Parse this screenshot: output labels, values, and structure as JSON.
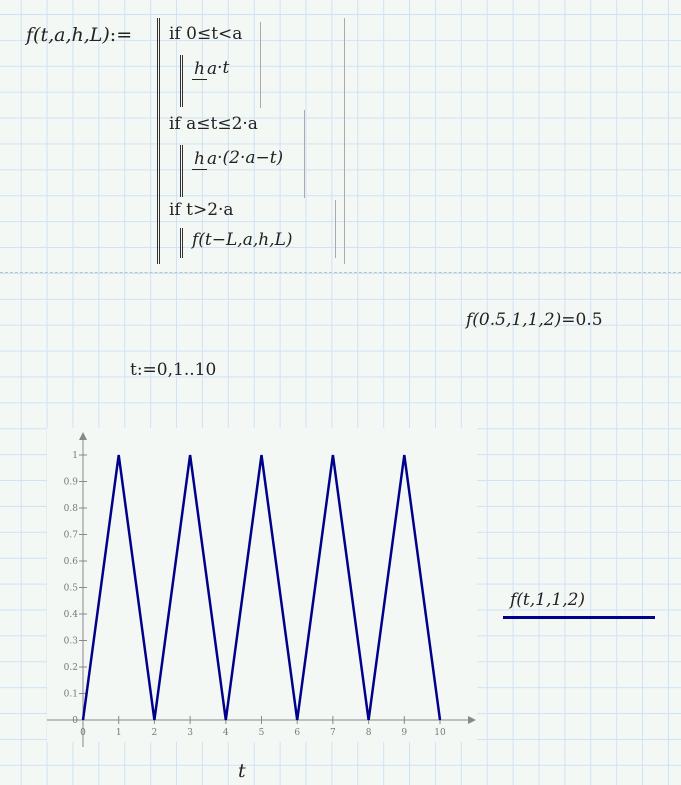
{
  "definition": {
    "lhs": "f(t,a,h,L)",
    "assign": ":=",
    "cases": [
      {
        "condition": "if 0≤t<a",
        "num": "h",
        "den": "a",
        "rest": "·t"
      },
      {
        "condition": "if a≤t≤2·a",
        "num": "h",
        "den": "a",
        "rest": "·(2·a−t)"
      },
      {
        "condition": "if t>2·a",
        "expr": "f(t−L,a,h,L)"
      }
    ]
  },
  "evaluation": {
    "expr": "f(0.5,1,1,2)",
    "result": "=0.5"
  },
  "range_def": "t:=0,1..10",
  "chart_data": {
    "type": "line",
    "xlabel": "t",
    "x": [
      0,
      1,
      2,
      3,
      4,
      5,
      6,
      7,
      8,
      9,
      10
    ],
    "series": [
      {
        "name": "f(t,1,1,2)",
        "values": [
          0,
          1,
          0,
          1,
          0,
          1,
          0,
          1,
          0,
          1,
          0
        ],
        "color": "#00008b"
      }
    ],
    "xlim": [
      0,
      10
    ],
    "ylim": [
      0,
      1
    ],
    "xticks": [
      "0",
      "1",
      "2",
      "3",
      "4",
      "5",
      "6",
      "7",
      "8",
      "9",
      "10"
    ],
    "yticks": [
      "0",
      "0.1",
      "0.2",
      "0.3",
      "0.4",
      "0.5",
      "0.6",
      "0.7",
      "0.8",
      "0.9",
      "1"
    ],
    "grid": false,
    "legend": "right"
  }
}
